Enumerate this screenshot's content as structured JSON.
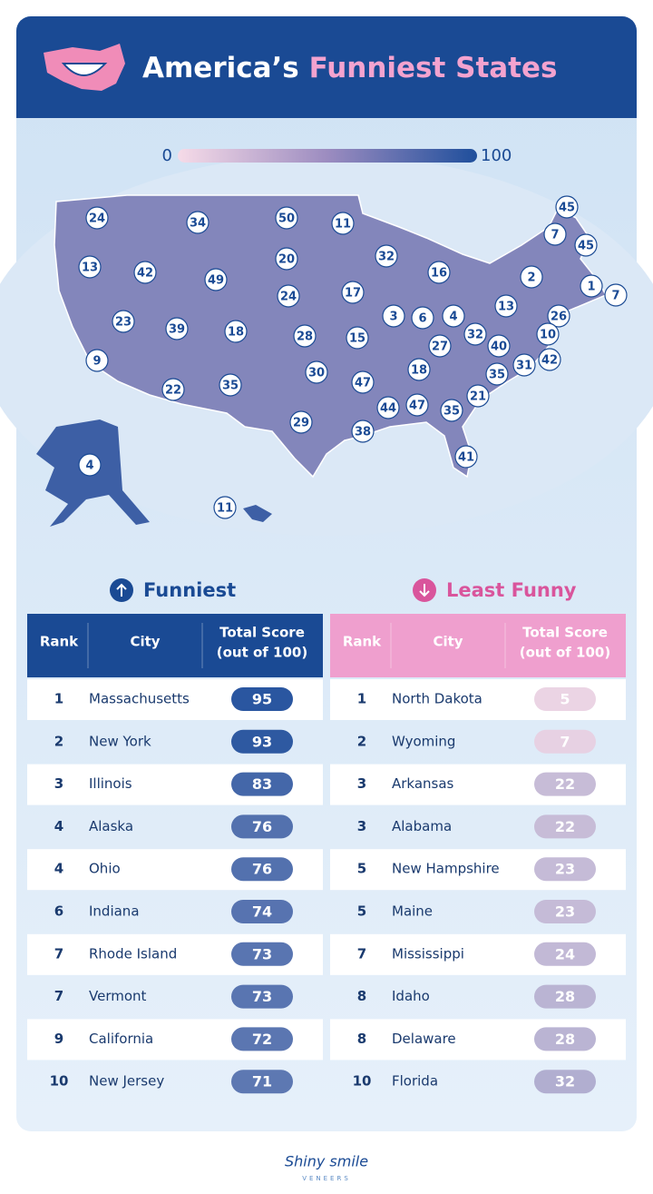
{
  "header": {
    "title_part1": "America’s",
    "title_part2": "Funniest States"
  },
  "legend": {
    "min": 0,
    "max": 100
  },
  "map": {
    "labels": [
      24,
      34,
      50,
      11,
      45,
      7,
      45,
      13,
      42,
      49,
      20,
      32,
      16,
      2,
      1,
      7,
      24,
      17,
      13,
      26,
      23,
      39,
      18,
      28,
      3,
      6,
      4,
      15,
      32,
      10,
      27,
      40,
      9,
      31,
      42,
      30,
      47,
      18,
      35,
      22,
      35,
      21,
      44,
      47,
      35,
      29,
      38,
      41,
      4,
      11
    ]
  },
  "tables": [
    {
      "heading": "Funniest",
      "columns": [
        "Rank",
        "City",
        "Total Score",
        "(out of 100)"
      ],
      "rows": [
        [
          1,
          "Massachusetts",
          95
        ],
        [
          2,
          "New York",
          93
        ],
        [
          3,
          "Illinois",
          83
        ],
        [
          4,
          "Alaska",
          76
        ],
        [
          4,
          "Ohio",
          76
        ],
        [
          6,
          "Indiana",
          74
        ],
        [
          7,
          "Rhode Island",
          73
        ],
        [
          7,
          "Vermont",
          73
        ],
        [
          9,
          "California",
          72
        ],
        [
          10,
          "New Jersey",
          71
        ]
      ]
    },
    {
      "heading": "Least Funny",
      "columns": [
        "Rank",
        "City",
        "Total Score",
        "(out of 100)"
      ],
      "rows": [
        [
          1,
          "North Dakota",
          5
        ],
        [
          2,
          "Wyoming",
          7
        ],
        [
          3,
          "Arkansas",
          22
        ],
        [
          3,
          "Alabama",
          22
        ],
        [
          5,
          "New Hampshire",
          23
        ],
        [
          5,
          "Maine",
          23
        ],
        [
          7,
          "Mississippi",
          24
        ],
        [
          8,
          "Idaho",
          28
        ],
        [
          8,
          "Delaware",
          28
        ],
        [
          10,
          "Florida",
          32
        ]
      ]
    }
  ],
  "footer": {
    "brand": "Shiny smile",
    "sub": "VENEERS"
  }
}
